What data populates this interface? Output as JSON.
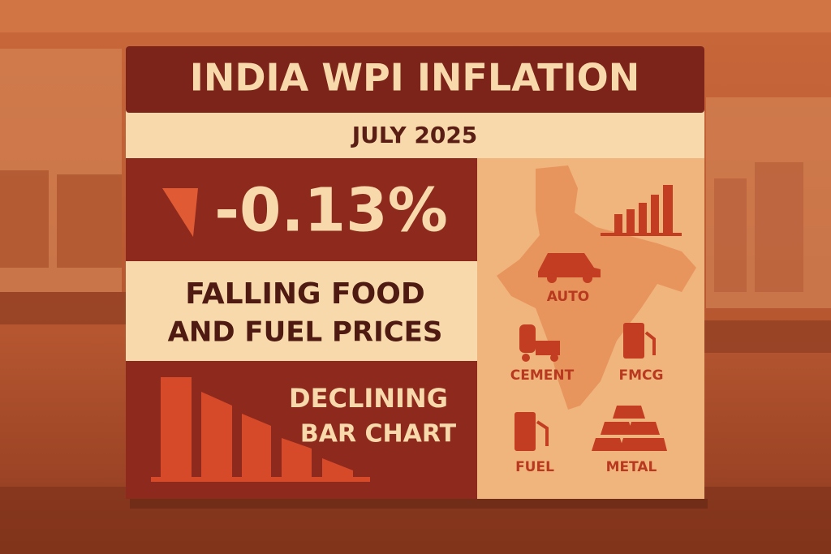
{
  "header": {
    "title": "INDIA WPI INFLATION",
    "subtitle": "JULY 2025"
  },
  "headline": {
    "value": "-0.13%",
    "caption": [
      "FALLING FOOD",
      "AND FUEL PRICES"
    ]
  },
  "chart_note": [
    "DECLINING",
    "BAR CHART"
  ],
  "sectors": [
    "AUTO",
    "CEMENT",
    "FMCG",
    "FUEL",
    "METAL"
  ]
}
